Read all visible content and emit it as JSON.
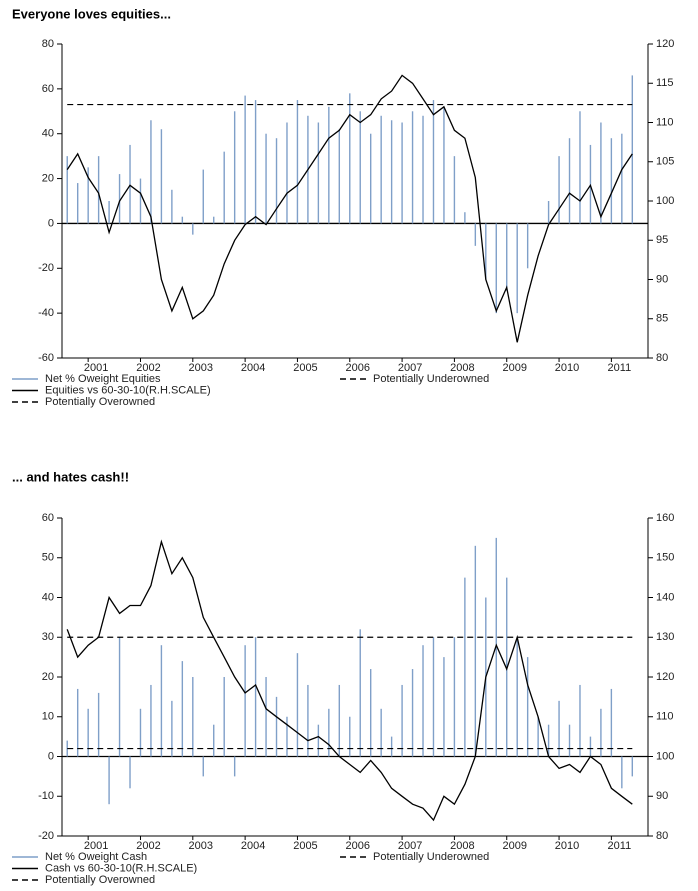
{
  "chart_data": [
    {
      "type": "combo",
      "title": "Everyone loves equities...",
      "x": [
        2000.6,
        2000.8,
        2001.0,
        2001.2,
        2001.4,
        2001.6,
        2001.8,
        2002.0,
        2002.2,
        2002.4,
        2002.6,
        2002.8,
        2003.0,
        2003.2,
        2003.4,
        2003.6,
        2003.8,
        2004.0,
        2004.2,
        2004.4,
        2004.6,
        2004.8,
        2005.0,
        2005.2,
        2005.4,
        2005.6,
        2005.8,
        2006.0,
        2006.2,
        2006.4,
        2006.6,
        2006.8,
        2007.0,
        2007.2,
        2007.4,
        2007.6,
        2007.8,
        2008.0,
        2008.2,
        2008.4,
        2008.6,
        2008.8,
        2009.0,
        2009.2,
        2009.4,
        2009.6,
        2009.8,
        2010.0,
        2010.2,
        2010.4,
        2010.6,
        2010.8,
        2011.0,
        2011.2,
        2011.4
      ],
      "xlim": [
        2000.5,
        2011.7
      ],
      "xticks": [
        2001,
        2002,
        2003,
        2004,
        2005,
        2006,
        2007,
        2008,
        2009,
        2010,
        2011
      ],
      "ylim": [
        -60,
        80
      ],
      "yticks": [
        -60,
        -40,
        -20,
        0,
        20,
        40,
        60,
        80
      ],
      "y2lim": [
        80,
        120
      ],
      "y2ticks": [
        80,
        85,
        90,
        95,
        100,
        105,
        110,
        115,
        120
      ],
      "series": [
        {
          "name": "Net % Oweight Equities",
          "type": "bar",
          "color": "#7f9fc8",
          "values": [
            30,
            18,
            25,
            30,
            10,
            22,
            35,
            20,
            46,
            42,
            15,
            3,
            -5,
            24,
            3,
            32,
            50,
            57,
            55,
            40,
            38,
            45,
            55,
            48,
            45,
            52,
            42,
            58,
            50,
            40,
            48,
            46,
            45,
            50,
            48,
            55,
            52,
            30,
            5,
            -10,
            -25,
            -40,
            -30,
            -40,
            -20,
            0,
            10,
            30,
            38,
            50,
            35,
            45,
            38,
            40,
            66
          ]
        },
        {
          "name": "Equities vs 60-30-10(R.H.SCALE)",
          "type": "line",
          "axis": "y2",
          "color": "#000000",
          "values": [
            104,
            106,
            103,
            101,
            96,
            100,
            102,
            101,
            98,
            90,
            86,
            89,
            85,
            86,
            88,
            92,
            95,
            97,
            98,
            97,
            99,
            101,
            102,
            104,
            106,
            108,
            109,
            111,
            110,
            111,
            113,
            114,
            116,
            115,
            113,
            111,
            112,
            109,
            108,
            103,
            90,
            86,
            89,
            82,
            88,
            93,
            97,
            99,
            101,
            100,
            102,
            98,
            101,
            104,
            106
          ]
        },
        {
          "name": "Potentially Underowned",
          "type": "hline",
          "color": "#000000"
        },
        {
          "name": "Potentially Overowned",
          "type": "hline",
          "color": "#000000",
          "value": 53
        }
      ]
    },
    {
      "type": "combo",
      "title": "... and hates cash!!",
      "x": [
        2000.6,
        2000.8,
        2001.0,
        2001.2,
        2001.4,
        2001.6,
        2001.8,
        2002.0,
        2002.2,
        2002.4,
        2002.6,
        2002.8,
        2003.0,
        2003.2,
        2003.4,
        2003.6,
        2003.8,
        2004.0,
        2004.2,
        2004.4,
        2004.6,
        2004.8,
        2005.0,
        2005.2,
        2005.4,
        2005.6,
        2005.8,
        2006.0,
        2006.2,
        2006.4,
        2006.6,
        2006.8,
        2007.0,
        2007.2,
        2007.4,
        2007.6,
        2007.8,
        2008.0,
        2008.2,
        2008.4,
        2008.6,
        2008.8,
        2009.0,
        2009.2,
        2009.4,
        2009.6,
        2009.8,
        2010.0,
        2010.2,
        2010.4,
        2010.6,
        2010.8,
        2011.0,
        2011.2,
        2011.4
      ],
      "xlim": [
        2000.5,
        2011.7
      ],
      "xticks": [
        2001,
        2002,
        2003,
        2004,
        2005,
        2006,
        2007,
        2008,
        2009,
        2010,
        2011
      ],
      "ylim": [
        -20,
        60
      ],
      "yticks": [
        -20,
        -10,
        0,
        10,
        20,
        30,
        40,
        50,
        60
      ],
      "y2lim": [
        80,
        160
      ],
      "y2ticks": [
        80,
        90,
        100,
        110,
        120,
        130,
        140,
        150,
        160
      ],
      "series": [
        {
          "name": "Net % Oweight Cash",
          "type": "bar",
          "color": "#7f9fc8",
          "values": [
            4,
            17,
            12,
            16,
            -12,
            30,
            -8,
            12,
            18,
            28,
            14,
            24,
            20,
            -5,
            8,
            20,
            -5,
            28,
            30,
            20,
            15,
            10,
            26,
            18,
            8,
            12,
            18,
            10,
            32,
            22,
            12,
            5,
            18,
            22,
            28,
            30,
            25,
            30,
            45,
            53,
            40,
            55,
            45,
            30,
            25,
            10,
            8,
            14,
            8,
            18,
            5,
            12,
            17,
            -8,
            -5
          ]
        },
        {
          "name": "Cash vs 60-30-10(R.H.SCALE)",
          "type": "line",
          "axis": "y2",
          "color": "#000000",
          "values": [
            132,
            125,
            128,
            130,
            140,
            136,
            138,
            138,
            143,
            154,
            146,
            150,
            145,
            135,
            130,
            125,
            120,
            116,
            118,
            112,
            110,
            108,
            106,
            104,
            105,
            103,
            100,
            98,
            96,
            99,
            96,
            92,
            90,
            88,
            87,
            84,
            90,
            88,
            93,
            100,
            120,
            128,
            122,
            130,
            118,
            110,
            100,
            97,
            98,
            96,
            100,
            98,
            92,
            90,
            88
          ]
        },
        {
          "name": "Potentially Underowned",
          "type": "hline",
          "color": "#000000",
          "value": 2
        },
        {
          "name": "Potentially Overowned",
          "type": "hline",
          "color": "#000000",
          "value": 30
        }
      ]
    }
  ]
}
